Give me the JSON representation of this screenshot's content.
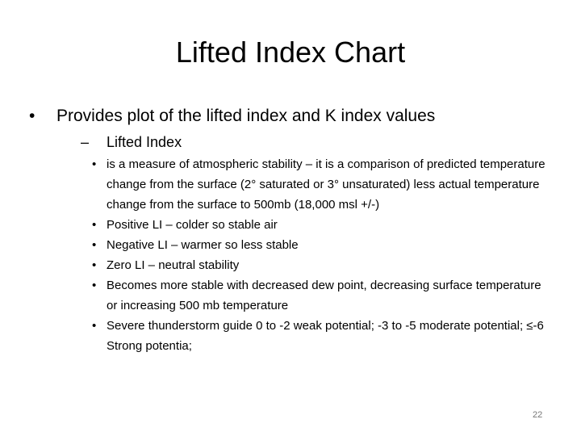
{
  "title": "Lifted Index Chart",
  "bullets": [
    {
      "text": "Provides plot of the lifted index and K index values",
      "children": [
        {
          "text": "Lifted Index",
          "children": [
            "is a measure of atmospheric stability – it is a comparison of predicted temperature change from the surface (2° saturated or 3° unsaturated) less actual temperature change from the surface to 500mb (18,000 msl +/-)",
            "Positive LI – colder so stable air",
            "Negative LI – warmer so less stable",
            "Zero LI – neutral stability",
            "Becomes more stable with decreased dew point, decreasing surface temperature or increasing 500 mb temperature",
            "Severe thunderstorm guide 0 to -2 weak potential; -3 to -5 moderate potential; ≤-6 Strong potentia;"
          ]
        }
      ]
    }
  ],
  "page_number": "22"
}
